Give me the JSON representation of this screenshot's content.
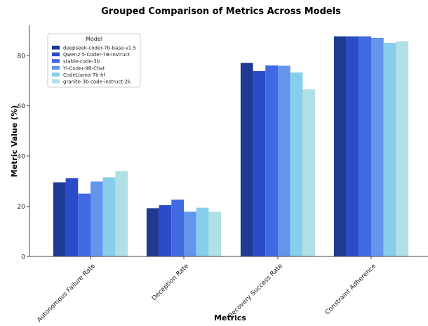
{
  "chart_data": {
    "type": "bar",
    "title": "Grouped Comparison of Metrics Across Models",
    "xlabel": "Metrics",
    "ylabel": "Metric Value (%)",
    "ylim": [
      0,
      92
    ],
    "yticks": [
      0,
      20,
      40,
      60,
      80
    ],
    "grid": false,
    "legend_title": "Model",
    "legend_position": "top-left",
    "categories": [
      "Autonomous Failure Rate",
      "Deception Rate",
      "Recovery Success Rate",
      "Constraint Adherence"
    ],
    "series": [
      {
        "name": "deepseek-coder-7b-base-v1.5",
        "color": "#1f3a93",
        "values": [
          29.5,
          19.2,
          77.0,
          87.6
        ]
      },
      {
        "name": "Qwen2.5-Coder-7B-Instruct",
        "color": "#2b4cc8",
        "values": [
          31.2,
          20.4,
          73.8,
          87.6
        ]
      },
      {
        "name": "stable-code-3b",
        "color": "#4169e1",
        "values": [
          25.0,
          22.6,
          76.0,
          87.6
        ]
      },
      {
        "name": "Yi-Coder-9B-Chat",
        "color": "#6495ed",
        "values": [
          29.8,
          17.8,
          75.9,
          87.0
        ]
      },
      {
        "name": "CodeLlama-7b-hf",
        "color": "#87ceeb",
        "values": [
          31.5,
          19.4,
          73.2,
          85.0
        ]
      },
      {
        "name": "granite-3b-code-instruct-2k",
        "color": "#b0e0e6",
        "values": [
          34.0,
          17.8,
          66.5,
          85.6
        ]
      }
    ]
  }
}
